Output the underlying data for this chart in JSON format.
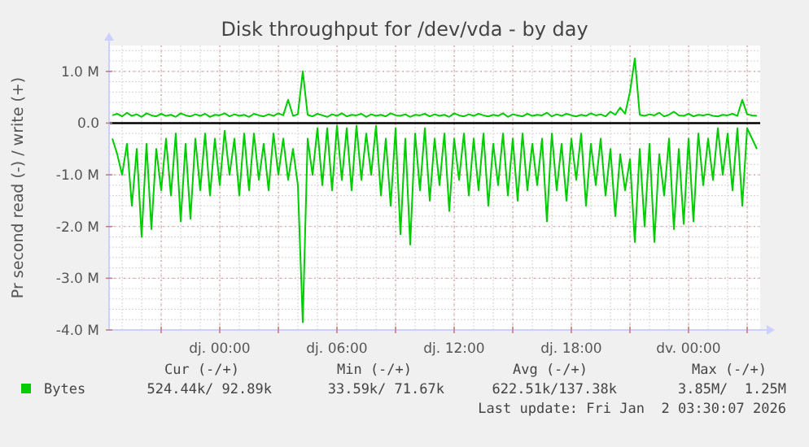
{
  "chart_data": {
    "type": "line",
    "title": "Disk throughput for /dev/vda - by day",
    "ylabel": "Pr second read (-) / write (+)",
    "xlim": [
      "2025-12-31T18:20",
      "2026-01-02T03:40"
    ],
    "ylim": [
      -4.0,
      1.5
    ],
    "xticks": [
      {
        "value": "2025-12-31T21:00",
        "label": null
      },
      {
        "value": "2026-01-01T00:00",
        "label": "dj. 00:00"
      },
      {
        "value": "2026-01-01T03:00",
        "label": null
      },
      {
        "value": "2026-01-01T06:00",
        "label": "dj. 06:00"
      },
      {
        "value": "2026-01-01T09:00",
        "label": null
      },
      {
        "value": "2026-01-01T12:00",
        "label": "dj. 12:00"
      },
      {
        "value": "2026-01-01T15:00",
        "label": null
      },
      {
        "value": "2026-01-01T18:00",
        "label": "dj. 18:00"
      },
      {
        "value": "2026-01-01T21:00",
        "label": null
      },
      {
        "value": "2026-01-02T00:00",
        "label": "dv. 00:00"
      },
      {
        "value": "2026-01-02T03:00",
        "label": null
      }
    ],
    "yticks": [
      {
        "value": -4,
        "label": "-4.0 M"
      },
      {
        "value": -3,
        "label": "-3.0 M"
      },
      {
        "value": -2,
        "label": "-2.0 M"
      },
      {
        "value": -1,
        "label": "-1.0 M"
      },
      {
        "value": 0,
        "label": "0.0"
      },
      {
        "value": 1,
        "label": "1.0 M"
      }
    ],
    "grid": true,
    "legend": "bottom",
    "ref_lines": [
      {
        "axis": "y",
        "value": 0,
        "color": "#000000"
      }
    ],
    "x": [
      "2025-12-31T18:30",
      "2025-12-31T18:45",
      "2025-12-31T19:00",
      "2025-12-31T19:15",
      "2025-12-31T19:30",
      "2025-12-31T19:45",
      "2025-12-31T20:00",
      "2025-12-31T20:15",
      "2025-12-31T20:30",
      "2025-12-31T20:45",
      "2025-12-31T21:00",
      "2025-12-31T21:15",
      "2025-12-31T21:30",
      "2025-12-31T21:45",
      "2025-12-31T22:00",
      "2025-12-31T22:15",
      "2025-12-31T22:30",
      "2025-12-31T22:45",
      "2025-12-31T23:00",
      "2025-12-31T23:15",
      "2025-12-31T23:30",
      "2025-12-31T23:45",
      "2026-01-01T00:00",
      "2026-01-01T00:15",
      "2026-01-01T00:30",
      "2026-01-01T00:45",
      "2026-01-01T01:00",
      "2026-01-01T01:15",
      "2026-01-01T01:30",
      "2026-01-01T01:45",
      "2026-01-01T02:00",
      "2026-01-01T02:15",
      "2026-01-01T02:30",
      "2026-01-01T02:45",
      "2026-01-01T03:00",
      "2026-01-01T03:15",
      "2026-01-01T03:30",
      "2026-01-01T03:45",
      "2026-01-01T04:00",
      "2026-01-01T04:15",
      "2026-01-01T04:30",
      "2026-01-01T04:45",
      "2026-01-01T05:00",
      "2026-01-01T05:15",
      "2026-01-01T05:30",
      "2026-01-01T05:45",
      "2026-01-01T06:00",
      "2026-01-01T06:15",
      "2026-01-01T06:30",
      "2026-01-01T06:45",
      "2026-01-01T07:00",
      "2026-01-01T07:15",
      "2026-01-01T07:30",
      "2026-01-01T07:45",
      "2026-01-01T08:00",
      "2026-01-01T08:15",
      "2026-01-01T08:30",
      "2026-01-01T08:45",
      "2026-01-01T09:00",
      "2026-01-01T09:15",
      "2026-01-01T09:30",
      "2026-01-01T09:45",
      "2026-01-01T10:00",
      "2026-01-01T10:15",
      "2026-01-01T10:30",
      "2026-01-01T10:45",
      "2026-01-01T11:00",
      "2026-01-01T11:15",
      "2026-01-01T11:30",
      "2026-01-01T11:45",
      "2026-01-01T12:00",
      "2026-01-01T12:15",
      "2026-01-01T12:30",
      "2026-01-01T12:45",
      "2026-01-01T13:00",
      "2026-01-01T13:15",
      "2026-01-01T13:30",
      "2026-01-01T13:45",
      "2026-01-01T14:00",
      "2026-01-01T14:15",
      "2026-01-01T14:30",
      "2026-01-01T14:45",
      "2026-01-01T15:00",
      "2026-01-01T15:15",
      "2026-01-01T15:30",
      "2026-01-01T15:45",
      "2026-01-01T16:00",
      "2026-01-01T16:15",
      "2026-01-01T16:30",
      "2026-01-01T16:45",
      "2026-01-01T17:00",
      "2026-01-01T17:15",
      "2026-01-01T17:30",
      "2026-01-01T17:45",
      "2026-01-01T18:00",
      "2026-01-01T18:15",
      "2026-01-01T18:30",
      "2026-01-01T18:45",
      "2026-01-01T19:00",
      "2026-01-01T19:15",
      "2026-01-01T19:30",
      "2026-01-01T19:45",
      "2026-01-01T20:00",
      "2026-01-01T20:15",
      "2026-01-01T20:30",
      "2026-01-01T20:45",
      "2026-01-01T21:00",
      "2026-01-01T21:15",
      "2026-01-01T21:30",
      "2026-01-01T21:45",
      "2026-01-01T22:00",
      "2026-01-01T22:15",
      "2026-01-01T22:30",
      "2026-01-01T22:45",
      "2026-01-01T23:00",
      "2026-01-01T23:15",
      "2026-01-01T23:30",
      "2026-01-01T23:45",
      "2026-01-02T00:00",
      "2026-01-02T00:15",
      "2026-01-02T00:30",
      "2026-01-02T00:45",
      "2026-01-02T01:00",
      "2026-01-02T01:15",
      "2026-01-02T01:30",
      "2026-01-02T01:45",
      "2026-01-02T02:00",
      "2026-01-02T02:15",
      "2026-01-02T02:30",
      "2026-01-02T02:45",
      "2026-01-02T03:00",
      "2026-01-02T03:15",
      "2026-01-02T03:30"
    ],
    "series": [
      {
        "name": "Bytes",
        "color": "#00cc00",
        "values": [
          -0.3,
          -0.6,
          -1.0,
          -0.4,
          -1.6,
          -0.5,
          -2.2,
          -0.4,
          -2.05,
          -0.5,
          -1.3,
          -0.3,
          -1.4,
          -0.2,
          -1.9,
          -0.4,
          -1.85,
          -0.3,
          -1.3,
          -0.2,
          -1.4,
          -0.3,
          -1.2,
          -0.15,
          -1.0,
          -0.3,
          -1.4,
          -0.2,
          -1.3,
          -0.2,
          -1.1,
          -0.4,
          -1.3,
          -0.2,
          -1.0,
          -0.3,
          -1.1,
          -0.5,
          -1.2,
          -3.85,
          -0.3,
          -1.0,
          -0.1,
          -1.2,
          -0.1,
          -1.3,
          -0.05,
          -1.1,
          -0.1,
          -1.3,
          -0.05,
          -1.1,
          -0.2,
          -1.0,
          -0.05,
          -1.4,
          -0.3,
          -1.6,
          -0.1,
          -2.15,
          -0.3,
          -2.35,
          -0.2,
          -1.3,
          -0.1,
          -1.5,
          -0.3,
          -1.2,
          -0.2,
          -1.7,
          -0.3,
          -1.1,
          -0.2,
          -1.4,
          -0.3,
          -1.3,
          -0.2,
          -1.6,
          -0.4,
          -1.2,
          -0.2,
          -1.4,
          -0.3,
          -1.5,
          -0.2,
          -1.3,
          -0.4,
          -1.2,
          -0.3,
          -1.9,
          -0.2,
          -1.3,
          -0.4,
          -1.5,
          -0.3,
          -1.1,
          -0.2,
          -1.6,
          -0.4,
          -1.2,
          -0.3,
          -1.4,
          -0.5,
          -1.8,
          -0.6,
          -1.3,
          -0.7,
          -2.3,
          -0.5,
          -2.0,
          -0.4,
          -2.3,
          -0.6,
          -1.4,
          -0.3,
          -2.05,
          -0.5,
          -1.95,
          -0.3,
          -1.9,
          -0.2,
          -1.2,
          -0.3,
          -1.1,
          -0.1,
          -1.0,
          -0.2,
          -1.3,
          -0.1,
          -1.6,
          -0.1,
          -0.3,
          -0.5
        ]
      },
      {
        "color": "#00cc00",
        "values": [
          0.15,
          0.18,
          0.13,
          0.2,
          0.14,
          0.17,
          0.12,
          0.19,
          0.15,
          0.13,
          0.18,
          0.14,
          0.16,
          0.12,
          0.19,
          0.15,
          0.13,
          0.17,
          0.14,
          0.18,
          0.12,
          0.16,
          0.15,
          0.19,
          0.13,
          0.17,
          0.14,
          0.16,
          0.12,
          0.18,
          0.15,
          0.13,
          0.17,
          0.14,
          0.19,
          0.15,
          0.45,
          0.14,
          0.17,
          1.0,
          0.16,
          0.13,
          0.18,
          0.15,
          0.12,
          0.17,
          0.14,
          0.19,
          0.13,
          0.16,
          0.15,
          0.18,
          0.12,
          0.17,
          0.14,
          0.16,
          0.13,
          0.19,
          0.15,
          0.14,
          0.17,
          0.12,
          0.16,
          0.15,
          0.18,
          0.13,
          0.17,
          0.14,
          0.16,
          0.12,
          0.19,
          0.15,
          0.13,
          0.17,
          0.14,
          0.18,
          0.15,
          0.13,
          0.16,
          0.14,
          0.19,
          0.12,
          0.17,
          0.15,
          0.13,
          0.18,
          0.14,
          0.16,
          0.15,
          0.2,
          0.13,
          0.17,
          0.14,
          0.18,
          0.15,
          0.13,
          0.16,
          0.14,
          0.19,
          0.15,
          0.17,
          0.13,
          0.22,
          0.16,
          0.3,
          0.18,
          0.6,
          1.25,
          0.16,
          0.14,
          0.17,
          0.15,
          0.2,
          0.13,
          0.16,
          0.22,
          0.15,
          0.14,
          0.18,
          0.13,
          0.16,
          0.15,
          0.17,
          0.14,
          0.13,
          0.16,
          0.15,
          0.18,
          0.14,
          0.45,
          0.17,
          0.15,
          0.14
        ]
      }
    ],
    "annotations": [
      "Cur (-/+)",
      "Min (-/+)",
      "Avg (-/+)",
      "Max (-/+)",
      "524.44k/ 92.89k",
      "33.59k/ 71.67k",
      "622.51k/137.38k",
      "3.85M/  1.25M",
      "Last update: Fri Jan  2 03:30:07 2026"
    ]
  }
}
